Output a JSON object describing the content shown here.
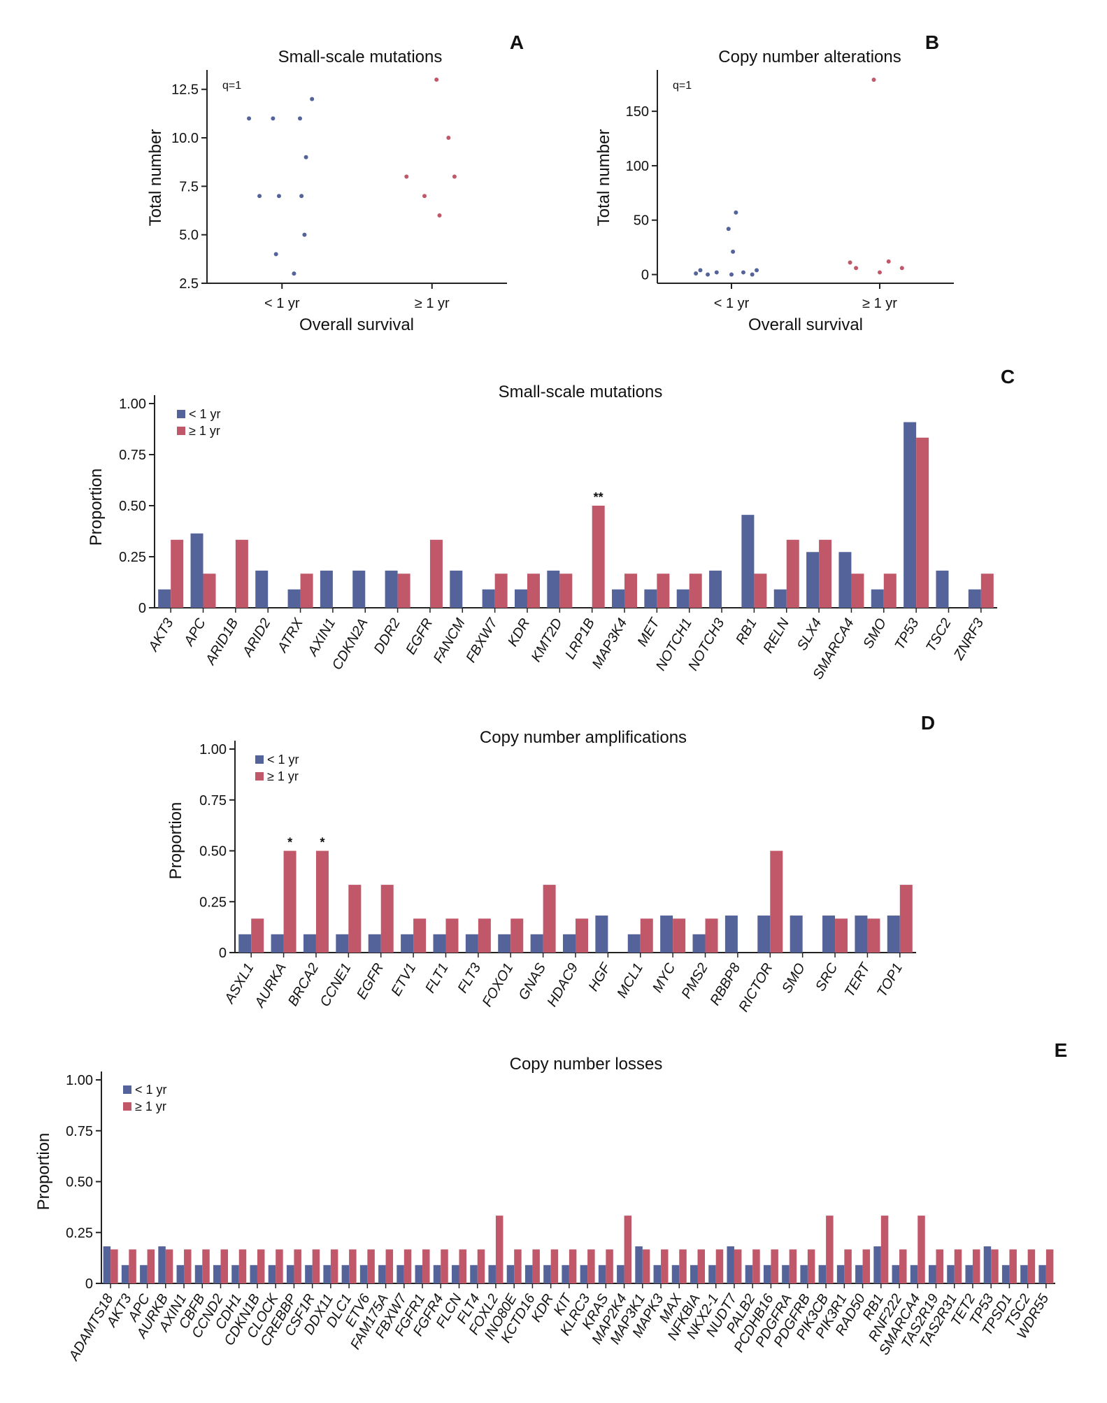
{
  "colors": {
    "lt1": "#54639a",
    "ge1": "#c1586a",
    "axis": "#222222"
  },
  "scatter_a": {
    "letter": "A",
    "chart_data": {
      "type": "scatter",
      "title": "Small-scale mutations",
      "xlabel": "Overall survival",
      "ylabel": "Total number",
      "categories": [
        "< 1 yr",
        "≥ 1 yr"
      ],
      "annotation": "q=1",
      "ylim": [
        2.5,
        13.5
      ],
      "yticks": [
        2.5,
        5.0,
        7.5,
        10.0,
        12.5
      ],
      "ytick_labels": [
        "2.5",
        "5.0",
        "7.5",
        "10.0",
        "12.5"
      ],
      "series": [
        {
          "name": "< 1 yr",
          "color": "#54639a",
          "points": [
            {
              "j": -0.22,
              "y": 11
            },
            {
              "j": -0.15,
              "y": 7
            },
            {
              "j": -0.06,
              "y": 11
            },
            {
              "j": -0.04,
              "y": 4
            },
            {
              "j": -0.02,
              "y": 7
            },
            {
              "j": 0.08,
              "y": 3
            },
            {
              "j": 0.12,
              "y": 11
            },
            {
              "j": 0.13,
              "y": 7
            },
            {
              "j": 0.15,
              "y": 5
            },
            {
              "j": 0.16,
              "y": 9
            },
            {
              "j": 0.2,
              "y": 12
            }
          ]
        },
        {
          "name": "≥ 1 yr",
          "color": "#c1586a",
          "points": [
            {
              "j": -0.17,
              "y": 8
            },
            {
              "j": -0.05,
              "y": 7
            },
            {
              "j": 0.03,
              "y": 13
            },
            {
              "j": 0.05,
              "y": 6
            },
            {
              "j": 0.11,
              "y": 10
            },
            {
              "j": 0.15,
              "y": 8
            }
          ]
        }
      ]
    }
  },
  "scatter_b": {
    "letter": "B",
    "chart_data": {
      "type": "scatter",
      "title": "Copy number alterations",
      "xlabel": "Overall survival",
      "ylabel": "Total number",
      "categories": [
        "< 1 yr",
        "≥ 1 yr"
      ],
      "annotation": "q=1",
      "ylim": [
        -8,
        188
      ],
      "yticks": [
        0,
        50,
        100,
        150
      ],
      "ytick_labels": [
        "0",
        "50",
        "100",
        "150"
      ],
      "series": [
        {
          "name": "< 1 yr",
          "color": "#54639a",
          "points": [
            {
              "j": -0.24,
              "y": 1
            },
            {
              "j": -0.21,
              "y": 4
            },
            {
              "j": -0.16,
              "y": 0
            },
            {
              "j": -0.1,
              "y": 2
            },
            {
              "j": -0.02,
              "y": 42
            },
            {
              "j": 0.0,
              "y": 0
            },
            {
              "j": 0.01,
              "y": 21
            },
            {
              "j": 0.03,
              "y": 57
            },
            {
              "j": 0.08,
              "y": 2
            },
            {
              "j": 0.14,
              "y": 0
            },
            {
              "j": 0.17,
              "y": 4
            }
          ]
        },
        {
          "name": "≥ 1 yr",
          "color": "#c1586a",
          "points": [
            {
              "j": -0.2,
              "y": 11
            },
            {
              "j": -0.16,
              "y": 6
            },
            {
              "j": -0.04,
              "y": 179
            },
            {
              "j": 0.0,
              "y": 2
            },
            {
              "j": 0.06,
              "y": 12
            },
            {
              "j": 0.15,
              "y": 6
            }
          ]
        }
      ]
    }
  },
  "bar_c": {
    "letter": "C",
    "chart_data": {
      "type": "bar",
      "title": "Small-scale mutations",
      "ylabel": "Proportion",
      "ylim": [
        0,
        1.0
      ],
      "yticks": [
        0,
        0.25,
        0.5,
        0.75,
        1.0
      ],
      "ytick_labels": [
        "0",
        "0.25",
        "0.50",
        "0.75",
        "1.00"
      ],
      "legend": [
        "< 1 yr",
        "≥ 1 yr"
      ],
      "categories": [
        "AKT3",
        "APC",
        "ARID1B",
        "ARID2",
        "ATRX",
        "AXIN1",
        "CDKN2A",
        "DDR2",
        "EGFR",
        "FANCM",
        "FBXW7",
        "KDR",
        "KMT2D",
        "LRP1B",
        "MAP3K4",
        "MET",
        "NOTCH1",
        "NOTCH3",
        "RB1",
        "RELN",
        "SLX4",
        "SMARCA4",
        "SMO",
        "TP53",
        "TSC2",
        "ZNRF3"
      ],
      "series": [
        {
          "name": "< 1 yr",
          "values": [
            0.09,
            0.364,
            0,
            0.182,
            0.09,
            0.182,
            0.182,
            0.182,
            0,
            0.182,
            0.09,
            0.09,
            0.182,
            0,
            0.09,
            0.09,
            0.09,
            0.182,
            0.455,
            0.09,
            0.273,
            0.273,
            0.09,
            0.909,
            0.182,
            0.09
          ]
        },
        {
          "name": "≥ 1 yr",
          "values": [
            0.333,
            0.167,
            0.333,
            0,
            0.167,
            0,
            0,
            0.167,
            0.333,
            0,
            0.167,
            0.167,
            0.167,
            0.5,
            0.167,
            0.167,
            0.167,
            0,
            0.167,
            0.333,
            0.333,
            0.167,
            0.167,
            0.833,
            0,
            0.167
          ]
        }
      ],
      "significance": [
        {
          "category": "LRP1B",
          "label": "**"
        }
      ]
    }
  },
  "bar_d": {
    "letter": "D",
    "chart_data": {
      "type": "bar",
      "title": "Copy number amplifications",
      "ylabel": "Proportion",
      "ylim": [
        0,
        1.0
      ],
      "yticks": [
        0,
        0.25,
        0.5,
        0.75,
        1.0
      ],
      "ytick_labels": [
        "0",
        "0.25",
        "0.50",
        "0.75",
        "1.00"
      ],
      "legend": [
        "< 1 yr",
        "≥ 1 yr"
      ],
      "categories": [
        "ASXL1",
        "AURKA",
        "BRCA2",
        "CCNE1",
        "EGFR",
        "ETV1",
        "FLT1",
        "FLT3",
        "FOXO1",
        "GNAS",
        "HDAC9",
        "HGF",
        "MCL1",
        "MYC",
        "PMS2",
        "RBBP8",
        "RICTOR",
        "SMO",
        "SRC",
        "TERT",
        "TOP1"
      ],
      "series": [
        {
          "name": "< 1 yr",
          "values": [
            0.09,
            0.09,
            0.09,
            0.09,
            0.09,
            0.09,
            0.09,
            0.09,
            0.09,
            0.09,
            0.09,
            0.182,
            0.09,
            0.182,
            0.09,
            0.182,
            0.182,
            0.182,
            0.182,
            0.182,
            0.182
          ]
        },
        {
          "name": "≥ 1 yr",
          "values": [
            0.167,
            0.5,
            0.5,
            0.333,
            0.333,
            0.167,
            0.167,
            0.167,
            0.167,
            0.333,
            0.167,
            0,
            0.167,
            0.167,
            0.167,
            0,
            0.5,
            0,
            0.167,
            0.167,
            0.333
          ]
        }
      ],
      "significance": [
        {
          "category": "AURKA",
          "label": "*"
        },
        {
          "category": "BRCA2",
          "label": "*"
        }
      ]
    }
  },
  "bar_e": {
    "letter": "E",
    "chart_data": {
      "type": "bar",
      "title": "Copy number losses",
      "ylabel": "Proportion",
      "ylim": [
        0,
        1.0
      ],
      "yticks": [
        0,
        0.25,
        0.5,
        0.75,
        1.0
      ],
      "ytick_labels": [
        "0",
        "0.25",
        "0.50",
        "0.75",
        "1.00"
      ],
      "legend": [
        "< 1 yr",
        "≥ 1 yr"
      ],
      "categories": [
        "ADAMTS18",
        "AKT3",
        "APC",
        "AURKB",
        "AXIN1",
        "CBFB",
        "CCND2",
        "CDH1",
        "CDKN1B",
        "CLOCK",
        "CREBBP",
        "CSF1R",
        "DDX11",
        "DLC1",
        "ETV6",
        "FAM175A",
        "FBXW7",
        "FGFR1",
        "FGFR4",
        "FLCN",
        "FLT4",
        "FOXL2",
        "INO80E",
        "KCTD16",
        "KDR",
        "KIT",
        "KLRC3",
        "KRAS",
        "MAP2K4",
        "MAP3K1",
        "MAPK3",
        "MAX",
        "NFKBIA",
        "NKX2-1",
        "NUDT7",
        "PALB2",
        "PCDHB16",
        "PDGFRA",
        "PDGFRB",
        "PIK3CB",
        "PIK3R1",
        "RAD50",
        "RB1",
        "RNF222",
        "SMARCA4",
        "TAS2R19",
        "TAS2R31",
        "TET2",
        "TP53",
        "TPSD1",
        "TSC2",
        "WDR55"
      ],
      "series": [
        {
          "name": "< 1 yr",
          "values": [
            0.182,
            0.09,
            0.09,
            0.182,
            0.09,
            0.09,
            0.09,
            0.09,
            0.09,
            0.09,
            0.09,
            0.09,
            0.09,
            0.09,
            0.09,
            0.09,
            0.09,
            0.09,
            0.09,
            0.09,
            0.09,
            0.09,
            0.09,
            0.09,
            0.09,
            0.09,
            0.09,
            0.09,
            0.09,
            0.182,
            0.09,
            0.09,
            0.09,
            0.09,
            0.182,
            0.09,
            0.09,
            0.09,
            0.09,
            0.09,
            0.09,
            0.09,
            0.182,
            0.09,
            0.09,
            0.09,
            0.09,
            0.09,
            0.182,
            0.09,
            0.09,
            0.09
          ]
        },
        {
          "name": "≥ 1 yr",
          "values": [
            0.167,
            0.167,
            0.167,
            0.167,
            0.167,
            0.167,
            0.167,
            0.167,
            0.167,
            0.167,
            0.167,
            0.167,
            0.167,
            0.167,
            0.167,
            0.167,
            0.167,
            0.167,
            0.167,
            0.167,
            0.167,
            0.333,
            0.167,
            0.167,
            0.167,
            0.167,
            0.167,
            0.167,
            0.333,
            0.167,
            0.167,
            0.167,
            0.167,
            0.167,
            0.167,
            0.167,
            0.167,
            0.167,
            0.167,
            0.333,
            0.167,
            0.167,
            0.333,
            0.167,
            0.333,
            0.167,
            0.167,
            0.167,
            0.167,
            0.167,
            0.167,
            0.167
          ]
        }
      ],
      "significance": []
    }
  }
}
